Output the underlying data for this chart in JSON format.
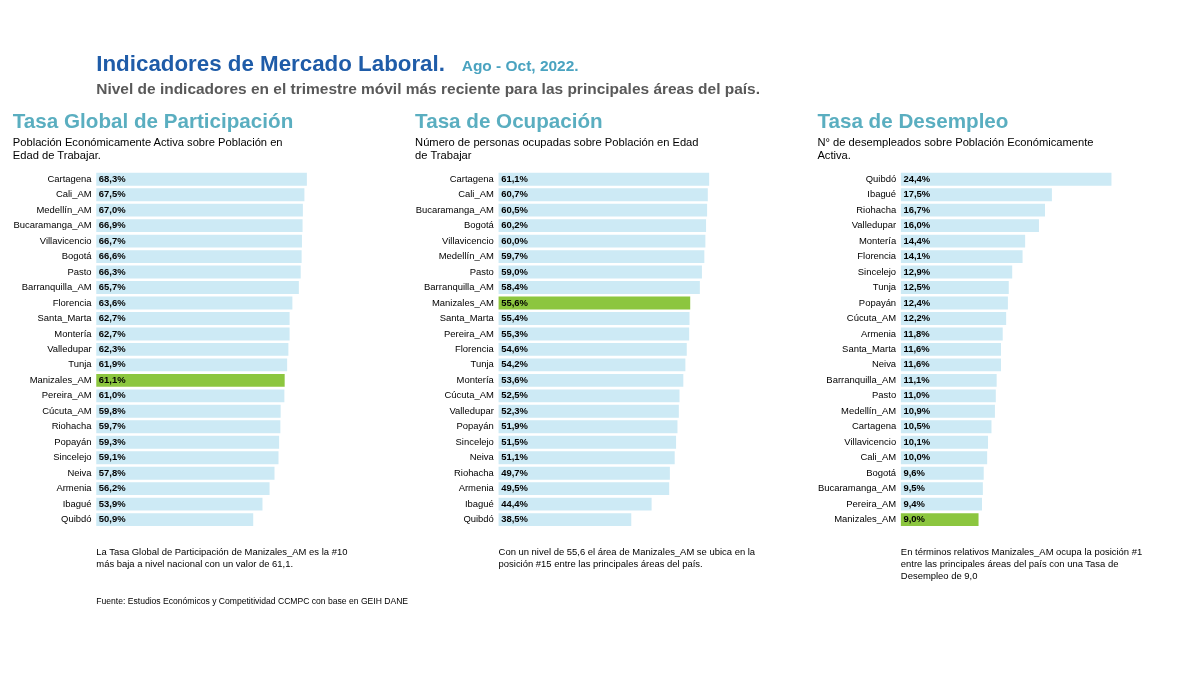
{
  "chart_data": [
    {
      "type": "other",
      "title": "Indicadores de Mercado Laboral.",
      "subtitle": "Nivel de indicadores en el trimestre móvil más reciente para las principales áreas del país.",
      "annotations": [
        "Ago - Oct, 2022.",
        "Fuente: Estudios Económicos y Competitividad CCMPC con base en GEIH DANE"
      ]
    },
    {
      "type": "bar",
      "orientation": "horizontal",
      "title": "Tasa Global de Participación",
      "subtitle": "Población Económicamente Activa sobre Población en Edad de Trabajar.",
      "categories": [
        "Cartagena",
        "Cali_AM",
        "Medellín_AM",
        "Bucaramanga_AM",
        "Villavicencio",
        "Bogotá",
        "Pasto",
        "Barranquilla_AM",
        "Florencia",
        "Santa_Marta",
        "Montería",
        "Valledupar",
        "Tunja",
        "Manizales_AM",
        "Pereira_AM",
        "Cúcuta_AM",
        "Riohacha",
        "Popayán",
        "Sincelejo",
        "Neiva",
        "Armenia",
        "Ibagué",
        "Quibdó"
      ],
      "values": [
        68.3,
        67.5,
        67.0,
        66.9,
        66.7,
        66.6,
        66.3,
        65.7,
        63.6,
        62.7,
        62.7,
        62.3,
        61.9,
        61.1,
        61.0,
        59.8,
        59.7,
        59.3,
        59.1,
        57.8,
        56.2,
        53.9,
        50.9
      ],
      "value_labels": [
        "68,3%",
        "67,5%",
        "67,0%",
        "66,9%",
        "66,7%",
        "66,6%",
        "66,3%",
        "65,7%",
        "63,6%",
        "62,7%",
        "62,7%",
        "62,3%",
        "61,9%",
        "61,1%",
        "61,0%",
        "59,8%",
        "59,7%",
        "59,3%",
        "59,1%",
        "57,8%",
        "56,2%",
        "53,9%",
        "50,9%"
      ],
      "colors": [
        "#cdeaf5",
        "#cdeaf5",
        "#cdeaf5",
        "#cdeaf5",
        "#cdeaf5",
        "#cdeaf5",
        "#cdeaf5",
        "#cdeaf5",
        "#cdeaf5",
        "#cdeaf5",
        "#cdeaf5",
        "#cdeaf5",
        "#cdeaf5",
        "#8cc63f",
        "#cdeaf5",
        "#cdeaf5",
        "#cdeaf5",
        "#cdeaf5",
        "#cdeaf5",
        "#cdeaf5",
        "#cdeaf5",
        "#cdeaf5",
        "#cdeaf5"
      ],
      "annotations": [
        "La Tasa Global de Participación de Manizales_AM es la #10 más baja a nivel nacional con un valor de 61,1."
      ]
    },
    {
      "type": "bar",
      "orientation": "horizontal",
      "title": "Tasa de Ocupación",
      "subtitle": "Número de personas ocupadas sobre Población en Edad de Trabajar",
      "categories": [
        "Cartagena",
        "Cali_AM",
        "Bucaramanga_AM",
        "Bogotá",
        "Villavicencio",
        "Medellín_AM",
        "Pasto",
        "Barranquilla_AM",
        "Manizales_AM",
        "Santa_Marta",
        "Pereira_AM",
        "Florencia",
        "Tunja",
        "Montería",
        "Cúcuta_AM",
        "Valledupar",
        "Popayán",
        "Sincelejo",
        "Neiva",
        "Riohacha",
        "Armenia",
        "Ibagué",
        "Quibdó"
      ],
      "values": [
        61.1,
        60.7,
        60.5,
        60.2,
        60.0,
        59.7,
        59.0,
        58.4,
        55.6,
        55.4,
        55.3,
        54.6,
        54.2,
        53.6,
        52.5,
        52.3,
        51.9,
        51.5,
        51.1,
        49.7,
        49.5,
        44.4,
        38.5
      ],
      "value_labels": [
        "61,1%",
        "60,7%",
        "60,5%",
        "60,2%",
        "60,0%",
        "59,7%",
        "59,0%",
        "58,4%",
        "55,6%",
        "55,4%",
        "55,3%",
        "54,6%",
        "54,2%",
        "53,6%",
        "52,5%",
        "52,3%",
        "51,9%",
        "51,5%",
        "51,1%",
        "49,7%",
        "49,5%",
        "44,4%",
        "38,5%"
      ],
      "colors": [
        "#cdeaf5",
        "#cdeaf5",
        "#cdeaf5",
        "#cdeaf5",
        "#cdeaf5",
        "#cdeaf5",
        "#cdeaf5",
        "#cdeaf5",
        "#8cc63f",
        "#cdeaf5",
        "#cdeaf5",
        "#cdeaf5",
        "#cdeaf5",
        "#cdeaf5",
        "#cdeaf5",
        "#cdeaf5",
        "#cdeaf5",
        "#cdeaf5",
        "#cdeaf5",
        "#cdeaf5",
        "#cdeaf5",
        "#cdeaf5",
        "#cdeaf5"
      ],
      "annotations": [
        "Con un nivel de 55,6 el área de Manizales_AM se ubica en la posición #15 entre las principales áreas del país."
      ]
    },
    {
      "type": "bar",
      "orientation": "horizontal",
      "title": "Tasa de Desempleo",
      "subtitle": "N° de desempleados sobre Población Económicamente Activa.",
      "categories": [
        "Quibdó",
        "Ibagué",
        "Riohacha",
        "Valledupar",
        "Montería",
        "Florencia",
        "Sincelejo",
        "Tunja",
        "Popayán",
        "Cúcuta_AM",
        "Armenia",
        "Santa_Marta",
        "Neiva",
        "Barranquilla_AM",
        "Pasto",
        "Medellín_AM",
        "Cartagena",
        "Villavicencio",
        "Cali_AM",
        "Bogotá",
        "Bucaramanga_AM",
        "Pereira_AM",
        "Manizales_AM"
      ],
      "values": [
        24.4,
        17.5,
        16.7,
        16.0,
        14.4,
        14.1,
        12.9,
        12.5,
        12.4,
        12.2,
        11.8,
        11.6,
        11.6,
        11.1,
        11.0,
        10.9,
        10.5,
        10.1,
        10.0,
        9.6,
        9.5,
        9.4,
        9.0
      ],
      "value_labels": [
        "24,4%",
        "17,5%",
        "16,7%",
        "16,0%",
        "14,4%",
        "14,1%",
        "12,9%",
        "12,5%",
        "12,4%",
        "12,2%",
        "11,8%",
        "11,6%",
        "11,6%",
        "11,1%",
        "11,0%",
        "10,9%",
        "10,5%",
        "10,1%",
        "10,0%",
        "9,6%",
        "9,5%",
        "9,4%",
        "9,0%"
      ],
      "colors": [
        "#cdeaf5",
        "#cdeaf5",
        "#cdeaf5",
        "#cdeaf5",
        "#cdeaf5",
        "#cdeaf5",
        "#cdeaf5",
        "#cdeaf5",
        "#cdeaf5",
        "#cdeaf5",
        "#cdeaf5",
        "#cdeaf5",
        "#cdeaf5",
        "#cdeaf5",
        "#cdeaf5",
        "#cdeaf5",
        "#cdeaf5",
        "#cdeaf5",
        "#cdeaf5",
        "#cdeaf5",
        "#cdeaf5",
        "#cdeaf5",
        "#8cc63f"
      ],
      "annotations": [
        "En términos relativos Manizales_AM ocupa la posición #1 entre las principales áreas del país con una Tasa de Desempleo de 9,0"
      ]
    }
  ]
}
